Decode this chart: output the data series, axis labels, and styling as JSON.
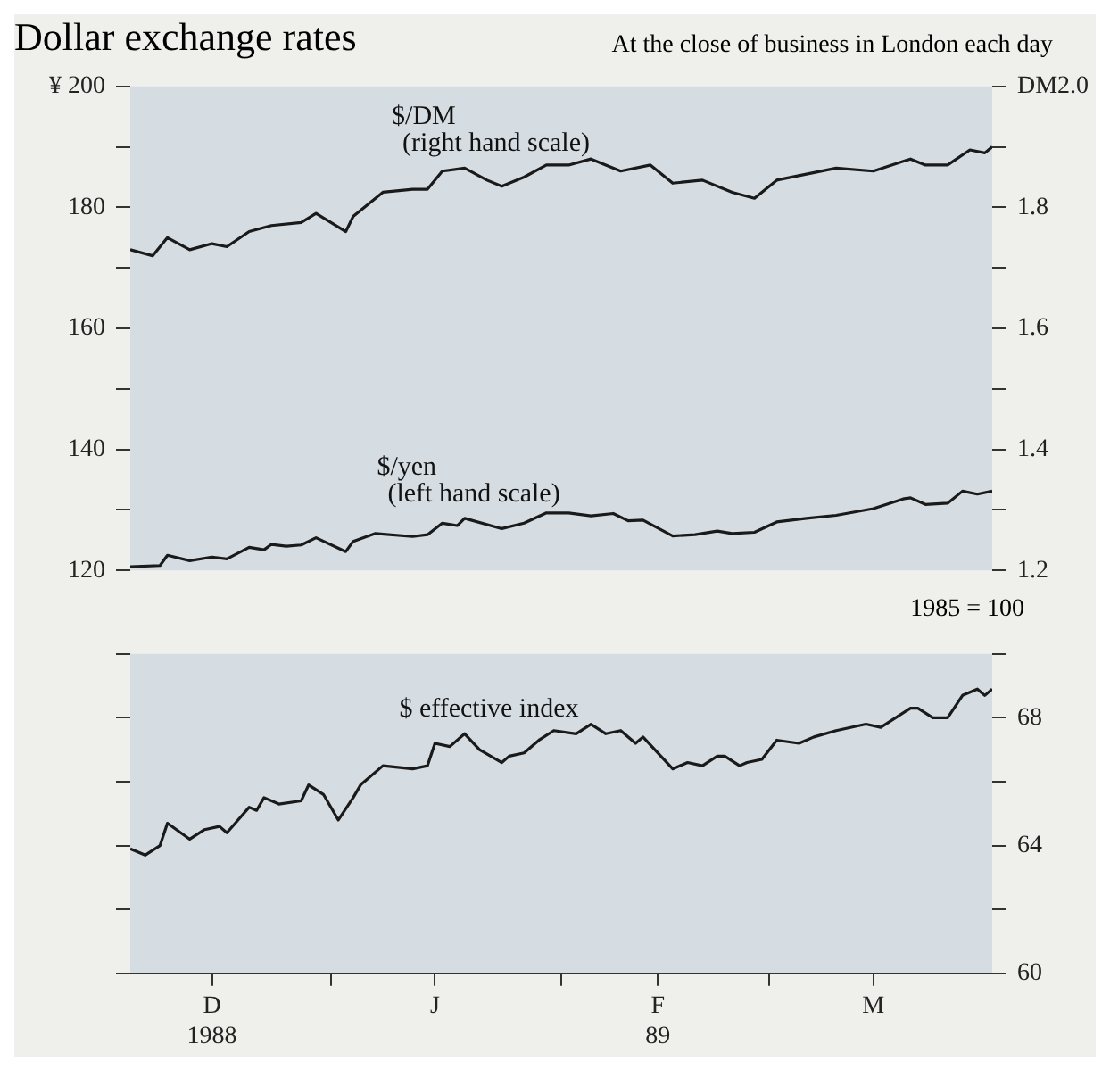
{
  "chart_data": [
    {
      "type": "line",
      "title": "Dollar exchange rates",
      "subtitle": "At the close of business in London each day",
      "marker": "none",
      "legend": false,
      "tick_labels": "y",
      "xlim": [
        "1988-12-05",
        "1989-03-31"
      ],
      "ylim": [
        120,
        200
      ],
      "yticks": [
        120,
        {
          "value": 130,
          "label": null
        },
        140,
        {
          "value": 150,
          "label": null
        },
        160,
        {
          "value": 170,
          "label": null
        },
        180,
        {
          "value": 190,
          "label": null
        },
        {
          "value": 200,
          "label": "¥ 200"
        }
      ],
      "y2lim": [
        1.2,
        2.0
      ],
      "y2ticks": [
        1.2,
        {
          "value": 1.3,
          "label": null
        },
        1.4,
        {
          "value": 1.5,
          "label": null
        },
        1.6,
        {
          "value": 1.7,
          "label": null
        },
        1.8,
        {
          "value": 1.9,
          "label": null
        },
        {
          "value": 2.0,
          "label": "DM2.0"
        }
      ],
      "series": [
        {
          "name": "$/DM (right hand scale)",
          "color": "#1a1a1a",
          "axis": "y2",
          "x": [
            "1988-12-05",
            "1988-12-08",
            "1988-12-10",
            "1988-12-13",
            "1988-12-16",
            "1988-12-18",
            "1988-12-21",
            "1988-12-24",
            "1988-12-28",
            "1988-12-30",
            "1989-01-03",
            "1989-01-04",
            "1989-01-08",
            "1989-01-12",
            "1989-01-14",
            "1989-01-16",
            "1989-01-19",
            "1989-01-22",
            "1989-01-24",
            "1989-01-27",
            "1989-01-30",
            "1989-02-02",
            "1989-02-05",
            "1989-02-09",
            "1989-02-13",
            "1989-02-16",
            "1989-02-20",
            "1989-02-24",
            "1989-02-27",
            "1989-03-02",
            "1989-03-06",
            "1989-03-10",
            "1989-03-15",
            "1989-03-20",
            "1989-03-22",
            "1989-03-25",
            "1989-03-28",
            "1989-03-30",
            "1989-03-31"
          ],
          "values": [
            1.73,
            1.72,
            1.75,
            1.73,
            1.74,
            1.735,
            1.76,
            1.77,
            1.775,
            1.79,
            1.76,
            1.785,
            1.825,
            1.83,
            1.83,
            1.86,
            1.865,
            1.845,
            1.835,
            1.85,
            1.87,
            1.87,
            1.88,
            1.86,
            1.87,
            1.84,
            1.845,
            1.825,
            1.815,
            1.845,
            1.855,
            1.865,
            1.86,
            1.88,
            1.87,
            1.87,
            1.895,
            1.89,
            1.9
          ]
        },
        {
          "name": "$/yen (left hand scale)",
          "color": "#1a1a1a",
          "axis": "y",
          "x": [
            "1988-12-05",
            "1988-12-09",
            "1988-12-10",
            "1988-12-13",
            "1988-12-16",
            "1988-12-18",
            "1988-12-21",
            "1988-12-23",
            "1988-12-24",
            "1988-12-26",
            "1988-12-28",
            "1988-12-30",
            "1989-01-03",
            "1989-01-04",
            "1989-01-07",
            "1989-01-12",
            "1989-01-14",
            "1989-01-16",
            "1989-01-18",
            "1989-01-19",
            "1989-01-24",
            "1989-01-27",
            "1989-01-30",
            "1989-02-02",
            "1989-02-05",
            "1989-02-08",
            "1989-02-10",
            "1989-02-12",
            "1989-02-16",
            "1989-02-19",
            "1989-02-22",
            "1989-02-24",
            "1989-02-27",
            "1989-03-02",
            "1989-03-06",
            "1989-03-10",
            "1989-03-15",
            "1989-03-19",
            "1989-03-20",
            "1989-03-22",
            "1989-03-25",
            "1989-03-27",
            "1989-03-29",
            "1989-03-31"
          ],
          "values": [
            120.6,
            120.8,
            122.5,
            121.6,
            122.2,
            121.9,
            123.8,
            123.4,
            124.3,
            124.0,
            124.2,
            125.4,
            123.1,
            124.8,
            126.1,
            125.6,
            125.9,
            127.8,
            127.4,
            128.6,
            126.9,
            127.8,
            129.5,
            129.5,
            129.0,
            129.4,
            128.2,
            128.3,
            125.7,
            125.9,
            126.5,
            126.1,
            126.3,
            128.0,
            128.6,
            129.1,
            130.2,
            131.8,
            132.0,
            130.9,
            131.1,
            133.1,
            132.6,
            133.1
          ]
        }
      ]
    },
    {
      "type": "line",
      "y2label": "1985 = 100",
      "marker": "none",
      "legend": false,
      "xlim": [
        "1988-12-05",
        "1989-03-31"
      ],
      "xticks": [
        {
          "value": "1988-12-16",
          "label": "D\n1988"
        },
        {
          "value": "1989-01-01",
          "label": null
        },
        {
          "value": "1989-01-15",
          "label": "J"
        },
        {
          "value": "1989-02-01",
          "label": null
        },
        {
          "value": "1989-02-14",
          "label": "F\n89"
        },
        {
          "value": "1989-03-01",
          "label": null
        },
        {
          "value": "1989-03-15",
          "label": "M"
        }
      ],
      "y2lim": [
        60,
        70
      ],
      "y2ticks": [
        60,
        {
          "value": 62,
          "label": null
        },
        64,
        {
          "value": 66,
          "label": null
        },
        68,
        {
          "value": 70,
          "label": null
        }
      ],
      "series": [
        {
          "name": "$ effective index",
          "color": "#1a1a1a",
          "axis": "y2",
          "x": [
            "1988-12-05",
            "1988-12-07",
            "1988-12-09",
            "1988-12-10",
            "1988-12-13",
            "1988-12-15",
            "1988-12-17",
            "1988-12-18",
            "1988-12-21",
            "1988-12-22",
            "1988-12-23",
            "1988-12-25",
            "1988-12-28",
            "1988-12-29",
            "1988-12-31",
            "1989-01-02",
            "1989-01-04",
            "1989-01-05",
            "1989-01-08",
            "1989-01-12",
            "1989-01-14",
            "1989-01-15",
            "1989-01-17",
            "1989-01-19",
            "1989-01-21",
            "1989-01-24",
            "1989-01-25",
            "1989-01-27",
            "1989-01-29",
            "1989-01-31",
            "1989-02-03",
            "1989-02-05",
            "1989-02-07",
            "1989-02-09",
            "1989-02-11",
            "1989-02-12",
            "1989-02-16",
            "1989-02-18",
            "1989-02-20",
            "1989-02-22",
            "1989-02-23",
            "1989-02-25",
            "1989-02-26",
            "1989-02-28",
            "1989-03-02",
            "1989-03-05",
            "1989-03-07",
            "1989-03-10",
            "1989-03-14",
            "1989-03-16",
            "1989-03-18",
            "1989-03-20",
            "1989-03-21",
            "1989-03-23",
            "1989-03-25",
            "1989-03-27",
            "1989-03-29",
            "1989-03-30",
            "1989-03-31"
          ],
          "values": [
            63.9,
            63.7,
            64.0,
            64.7,
            64.2,
            64.5,
            64.6,
            64.4,
            65.2,
            65.1,
            65.5,
            65.3,
            65.4,
            65.9,
            65.6,
            64.8,
            65.5,
            65.9,
            66.5,
            66.4,
            66.5,
            67.2,
            67.1,
            67.5,
            67.0,
            66.6,
            66.8,
            66.9,
            67.3,
            67.6,
            67.5,
            67.8,
            67.5,
            67.6,
            67.2,
            67.4,
            66.4,
            66.6,
            66.5,
            66.8,
            66.8,
            66.5,
            66.6,
            66.7,
            67.3,
            67.2,
            67.4,
            67.6,
            67.8,
            67.7,
            68.0,
            68.3,
            68.3,
            68.0,
            68.0,
            68.7,
            68.9,
            68.7,
            68.9
          ]
        }
      ]
    }
  ]
}
